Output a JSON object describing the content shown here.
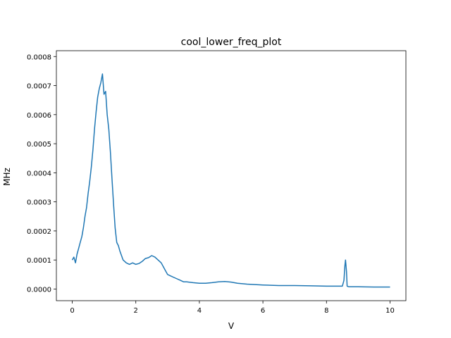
{
  "chart_data": {
    "type": "line",
    "title": "cool_lower_freq_plot",
    "xlabel": "V",
    "ylabel": "MHz",
    "xlim": [
      -0.5,
      10.5
    ],
    "ylim": [
      -4e-05,
      0.00082
    ],
    "x_ticks": [
      0,
      2,
      4,
      6,
      8,
      10
    ],
    "x_tick_labels": [
      "0",
      "2",
      "4",
      "6",
      "8",
      "10"
    ],
    "y_ticks": [
      0.0,
      0.0001,
      0.0002,
      0.0003,
      0.0004,
      0.0005,
      0.0006,
      0.0007,
      0.0008
    ],
    "y_tick_labels": [
      "0.0000",
      "0.0001",
      "0.0002",
      "0.0003",
      "0.0004",
      "0.0005",
      "0.0006",
      "0.0007",
      "0.0008"
    ],
    "grid": false,
    "line_color": "#1f77b4",
    "series": [
      {
        "x": [
          0.0,
          0.05,
          0.1,
          0.15,
          0.2,
          0.25,
          0.3,
          0.35,
          0.4,
          0.45,
          0.5,
          0.55,
          0.6,
          0.65,
          0.7,
          0.75,
          0.8,
          0.85,
          0.9,
          0.95,
          1.0,
          1.05,
          1.1,
          1.15,
          1.2,
          1.25,
          1.3,
          1.35,
          1.4,
          1.45,
          1.5,
          1.6,
          1.7,
          1.8,
          1.9,
          2.0,
          2.1,
          2.2,
          2.3,
          2.4,
          2.5,
          2.6,
          2.7,
          2.8,
          2.9,
          3.0,
          3.1,
          3.2,
          3.3,
          3.4,
          3.5,
          3.6,
          3.8,
          4.0,
          4.2,
          4.4,
          4.6,
          4.8,
          5.0,
          5.2,
          5.5,
          6.0,
          6.5,
          7.0,
          7.5,
          8.0,
          8.3,
          8.5,
          8.55,
          8.58,
          8.6,
          8.63,
          8.65,
          8.7,
          9.0,
          9.5,
          10.0
        ],
        "y": [
          0.0001,
          0.00011,
          9e-05,
          0.00012,
          0.00014,
          0.00016,
          0.00018,
          0.00021,
          0.00025,
          0.00028,
          0.00033,
          0.00037,
          0.00042,
          0.00048,
          0.00055,
          0.00061,
          0.00066,
          0.00069,
          0.00071,
          0.00074,
          0.00067,
          0.00068,
          0.0006,
          0.00055,
          0.00047,
          0.00038,
          0.00029,
          0.00021,
          0.00016,
          0.00015,
          0.00013,
          0.0001,
          9e-05,
          8.5e-05,
          9e-05,
          8.5e-05,
          8.8e-05,
          9.5e-05,
          0.000105,
          0.000108,
          0.000115,
          0.00011,
          0.0001,
          9e-05,
          7e-05,
          5e-05,
          4.5e-05,
          4e-05,
          3.5e-05,
          3e-05,
          2.5e-05,
          2.5e-05,
          2.2e-05,
          2e-05,
          2e-05,
          2.2e-05,
          2.5e-05,
          2.6e-05,
          2.4e-05,
          2e-05,
          1.7e-05,
          1.4e-05,
          1.2e-05,
          1.2e-05,
          1.1e-05,
          1e-05,
          1e-05,
          1e-05,
          3e-05,
          8e-05,
          0.0001,
          6e-05,
          1e-05,
          8e-06,
          8e-06,
          7e-06,
          7e-06
        ]
      }
    ]
  }
}
